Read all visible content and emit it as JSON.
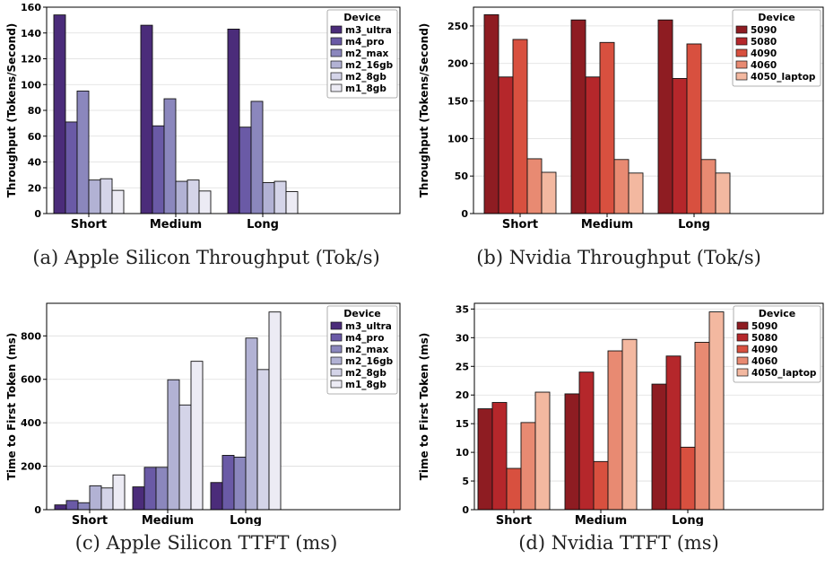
{
  "chart_data": [
    {
      "type": "bar",
      "caption": "(a) Apple Silicon Throughput (Tok/s)",
      "ylabel": "Throughput (Tokens/Second)",
      "xlabel": "",
      "categories": [
        "Short",
        "Medium",
        "Long"
      ],
      "ylim": [
        0,
        160
      ],
      "yticks": [
        0,
        20,
        40,
        60,
        80,
        100,
        120,
        140,
        160
      ],
      "legend_title": "Device",
      "legend_position": "top-right",
      "grid": "horizontal",
      "series": [
        {
          "name": "m3_ultra",
          "color": "#4b2c7a",
          "values": [
            154,
            146,
            143
          ]
        },
        {
          "name": "m4_pro",
          "color": "#6a5aa6",
          "values": [
            71,
            68,
            67
          ]
        },
        {
          "name": "m2_max",
          "color": "#8b87bd",
          "values": [
            95,
            89,
            87
          ]
        },
        {
          "name": "m2_16gb",
          "color": "#b2b2d4",
          "values": [
            26,
            25,
            24
          ]
        },
        {
          "name": "m2_8gb",
          "color": "#d4d4e8",
          "values": [
            27,
            26,
            25
          ]
        },
        {
          "name": "m1_8gb",
          "color": "#ecebf4",
          "values": [
            18,
            17.5,
            17
          ]
        }
      ]
    },
    {
      "type": "bar",
      "caption": "(b) Nvidia Throughput (Tok/s)",
      "ylabel": "Throughput (Tokens/Second)",
      "xlabel": "",
      "categories": [
        "Short",
        "Medium",
        "Long"
      ],
      "ylim": [
        0,
        275
      ],
      "yticks": [
        0,
        50,
        100,
        150,
        200,
        250
      ],
      "legend_title": "Device",
      "legend_position": "top-right",
      "grid": "horizontal",
      "series": [
        {
          "name": "5090",
          "color": "#8e1c22",
          "values": [
            265,
            258,
            258
          ]
        },
        {
          "name": "5080",
          "color": "#b5272b",
          "values": [
            182,
            182,
            180
          ]
        },
        {
          "name": "4090",
          "color": "#d8503f",
          "values": [
            232,
            228,
            226
          ]
        },
        {
          "name": "4060",
          "color": "#e88a72",
          "values": [
            73,
            72,
            72
          ]
        },
        {
          "name": "4050_laptop",
          "color": "#f3b8a0",
          "values": [
            55,
            54,
            54
          ]
        }
      ]
    },
    {
      "type": "bar",
      "caption": "(c) Apple Silicon TTFT (ms)",
      "ylabel": "Time to First Token (ms)",
      "xlabel": "",
      "categories": [
        "Short",
        "Medium",
        "Long"
      ],
      "ylim": [
        0,
        950
      ],
      "yticks": [
        0,
        200,
        400,
        600,
        800
      ],
      "legend_title": "Device",
      "legend_position": "top-right",
      "grid": "horizontal",
      "series": [
        {
          "name": "m3_ultra",
          "color": "#4b2c7a",
          "values": [
            22,
            105,
            125
          ]
        },
        {
          "name": "m4_pro",
          "color": "#6a5aa6",
          "values": [
            42,
            195,
            250
          ]
        },
        {
          "name": "m2_max",
          "color": "#8b87bd",
          "values": [
            32,
            195,
            242
          ]
        },
        {
          "name": "m2_16gb",
          "color": "#b2b2d4",
          "values": [
            110,
            598,
            790
          ]
        },
        {
          "name": "m2_8gb",
          "color": "#d4d4e8",
          "values": [
            100,
            482,
            645
          ]
        },
        {
          "name": "m1_8gb",
          "color": "#ecebf4",
          "values": [
            160,
            683,
            910
          ]
        }
      ]
    },
    {
      "type": "bar",
      "caption": "(d) Nvidia TTFT (ms)",
      "ylabel": "Time to First Token (ms)",
      "xlabel": "",
      "categories": [
        "Short",
        "Medium",
        "Long"
      ],
      "ylim": [
        0,
        36
      ],
      "yticks": [
        0,
        5,
        10,
        15,
        20,
        25,
        30,
        35
      ],
      "legend_title": "Device",
      "legend_position": "top-right",
      "grid": "horizontal",
      "series": [
        {
          "name": "5090",
          "color": "#8e1c22",
          "values": [
            17.6,
            20.2,
            21.9
          ]
        },
        {
          "name": "5080",
          "color": "#b5272b",
          "values": [
            18.7,
            24.0,
            26.8
          ]
        },
        {
          "name": "4090",
          "color": "#d8503f",
          "values": [
            7.2,
            8.4,
            10.9
          ]
        },
        {
          "name": "4060",
          "color": "#e88a72",
          "values": [
            15.2,
            27.7,
            29.2
          ]
        },
        {
          "name": "4050_laptop",
          "color": "#f3b8a0",
          "values": [
            20.5,
            29.7,
            34.5
          ]
        }
      ]
    }
  ]
}
